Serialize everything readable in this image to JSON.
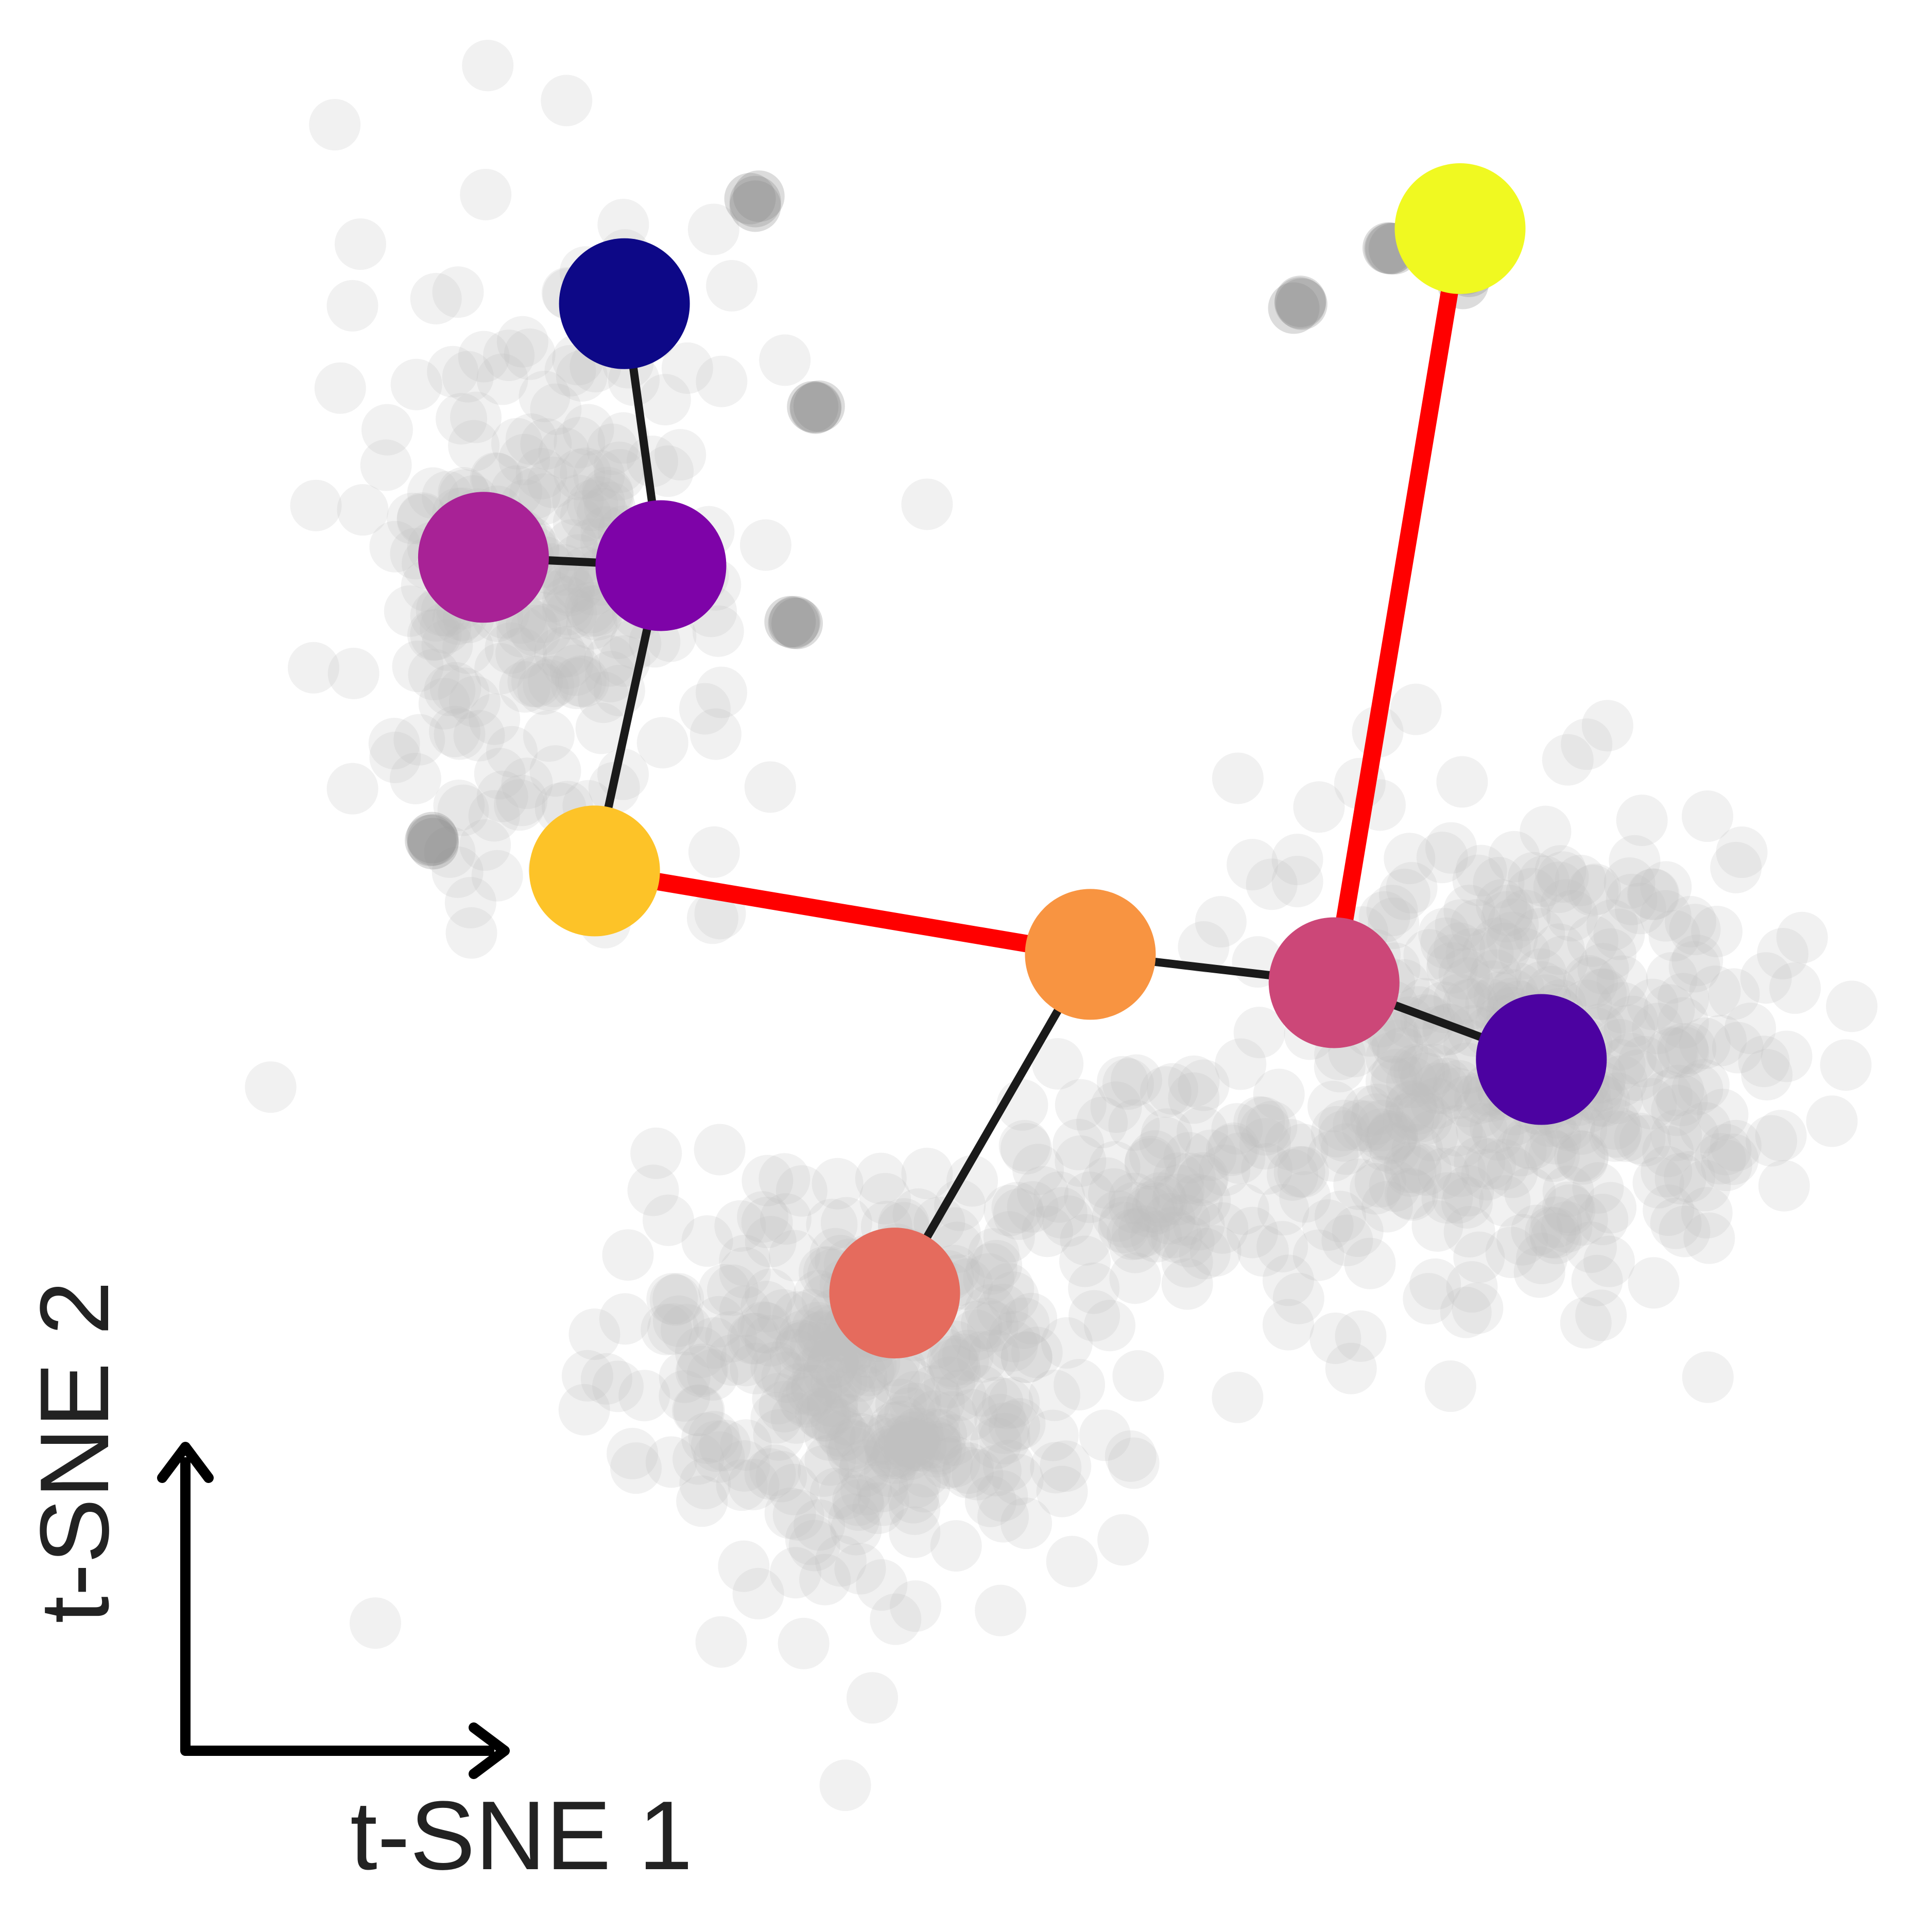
{
  "chart_data": {
    "type": "scatter",
    "title": "",
    "xlabel": "t-SNE 1",
    "ylabel": "t-SNE 2",
    "grid": false,
    "legend": "none",
    "axes_style": "arrow-indicators",
    "xlim": [
      0,
      100
    ],
    "ylim": [
      0,
      100
    ],
    "background_points": {
      "color": "#bdbdbd",
      "opacity": 0.22,
      "description_clusters": [
        {
          "name": "upper-left",
          "center": [
            22,
            70
          ],
          "spread": [
            6,
            9
          ],
          "n": 260
        },
        {
          "name": "lower-center",
          "center": [
            42,
            21
          ],
          "spread": [
            7,
            6
          ],
          "n": 360
        },
        {
          "name": "right",
          "center": [
            80,
            40
          ],
          "spread": [
            8,
            7
          ],
          "n": 420
        },
        {
          "name": "bridge",
          "center": [
            60,
            33
          ],
          "spread": [
            5,
            3
          ],
          "n": 90
        }
      ],
      "isolated": [
        [
          34.8,
          91.8
        ],
        [
          38.6,
          79.3
        ],
        [
          37.3,
          66.5
        ],
        [
          15.9,
          53.3
        ],
        [
          67.7,
          85.5
        ],
        [
          73.5,
          88.8
        ],
        [
          77.8,
          87.3
        ],
        [
          77.0,
          90.0
        ]
      ]
    },
    "nodes": [
      {
        "id": "n1",
        "x": 27.1,
        "y": 85.5,
        "color": "#0d0887"
      },
      {
        "id": "n2",
        "x": 29.3,
        "y": 69.8,
        "color": "#7e03a8"
      },
      {
        "id": "n3",
        "x": 18.6,
        "y": 70.3,
        "color": "#a82296"
      },
      {
        "id": "n4",
        "x": 25.3,
        "y": 51.5,
        "color": "#fdc328"
      },
      {
        "id": "n5",
        "x": 55.2,
        "y": 46.5,
        "color": "#f89441"
      },
      {
        "id": "n6",
        "x": 69.9,
        "y": 44.8,
        "color": "#cc4778"
      },
      {
        "id": "n7",
        "x": 82.4,
        "y": 40.2,
        "color": "#4c02a1"
      },
      {
        "id": "n8",
        "x": 77.5,
        "y": 90.0,
        "color": "#f0f921"
      },
      {
        "id": "n9",
        "x": 43.4,
        "y": 26.2,
        "color": "#e56b5d"
      }
    ],
    "edges": [
      {
        "from": "n1",
        "to": "n2",
        "highlight": false
      },
      {
        "from": "n3",
        "to": "n2",
        "highlight": false
      },
      {
        "from": "n2",
        "to": "n4",
        "highlight": false
      },
      {
        "from": "n4",
        "to": "n5",
        "highlight": true
      },
      {
        "from": "n5",
        "to": "n6",
        "highlight": false
      },
      {
        "from": "n6",
        "to": "n7",
        "highlight": false
      },
      {
        "from": "n6",
        "to": "n8",
        "highlight": true
      },
      {
        "from": "n5",
        "to": "n9",
        "highlight": false
      }
    ],
    "edge_color": "#1a1a1a",
    "highlight_color": "#ff0000",
    "axis_arrow_color": "#000000"
  }
}
